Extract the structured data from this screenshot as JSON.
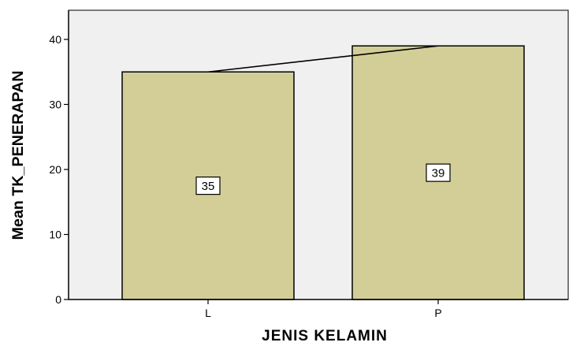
{
  "chart_data": {
    "type": "bar",
    "categories": [
      "L",
      "P"
    ],
    "values": [
      35,
      39
    ],
    "data_labels": [
      "35",
      "39"
    ],
    "xlabel": "JENIS KELAMIN",
    "ylabel": "Mean TK_PENERAPAN",
    "ylim": [
      0,
      40
    ],
    "yticks": [
      0,
      10,
      20,
      30,
      40
    ],
    "ytick_labels": [
      "0",
      "10",
      "20",
      "30",
      "40"
    ],
    "grid": false,
    "connecting_line": true,
    "colors": {
      "plot_background": "#f0f0f0",
      "bar_fill": "#d3ce97",
      "bar_stroke": "#000000"
    }
  }
}
